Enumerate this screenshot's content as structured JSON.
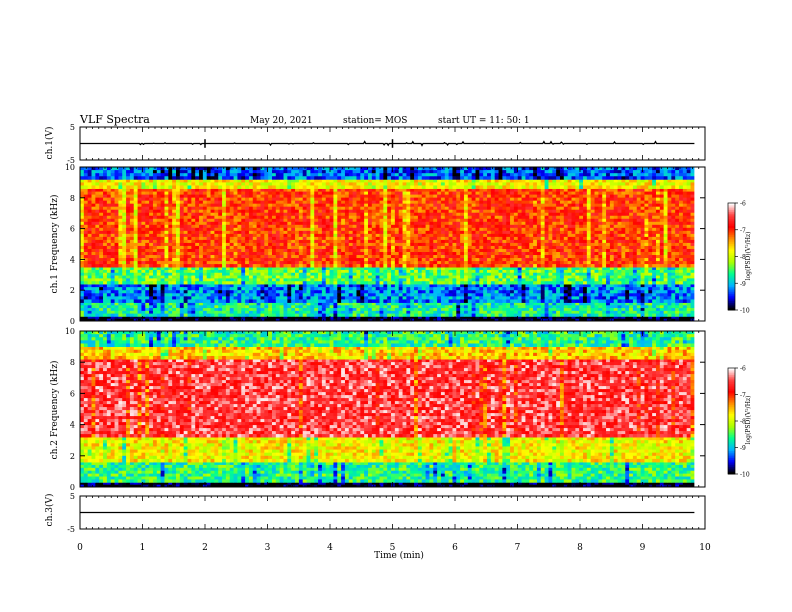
{
  "header": {
    "title": "VLF Spectra",
    "date": "May 20, 2021",
    "station": "station= MOS",
    "start": "start  UT =   11: 50: 1"
  },
  "colors": {
    "colormap": [
      "#000000",
      "#0000ff",
      "#00b4ff",
      "#00ff90",
      "#aaff00",
      "#ffff00",
      "#ff8c00",
      "#ff0000",
      "#ff4040",
      "#ffffff"
    ],
    "trace": "#000000"
  },
  "chart_data": [
    {
      "type": "line",
      "panel": "ch1-waveform",
      "ylabel": "ch.1(V)",
      "ylim": [
        -5,
        5
      ],
      "yticks": [
        "5",
        "-5"
      ],
      "xlim": [
        0,
        10
      ],
      "series": [
        {
          "values_note": "",
          "level": 0
        }
      ]
    },
    {
      "type": "heatmap",
      "panel": "ch1-spectrogram",
      "ylabel": "ch.1 Frequency (kHz)",
      "ylim": [
        0,
        10
      ],
      "yticks": [
        "0",
        "2",
        "4",
        "6",
        "8",
        "10"
      ],
      "xlim": [
        0,
        10
      ],
      "colorbar": {
        "label": "log(PSD)(V²/Hz)",
        "ticks": [
          "-6",
          "-7",
          "-8",
          "-9",
          "-10"
        ],
        "range": [
          -10,
          -6
        ]
      },
      "bands": [
        {
          "f0": 0.0,
          "f1": 0.3,
          "level": -10
        },
        {
          "f0": 0.3,
          "f1": 1.2,
          "level": -8.7
        },
        {
          "f0": 1.2,
          "f1": 2.4,
          "level": -9.2
        },
        {
          "f0": 2.4,
          "f1": 3.5,
          "level": -8.4
        },
        {
          "f0": 3.5,
          "f1": 8.6,
          "level": -7.0
        },
        {
          "f0": 8.6,
          "f1": 9.2,
          "level": -7.8
        },
        {
          "f0": 9.2,
          "f1": 10.0,
          "level": -9.3
        }
      ]
    },
    {
      "type": "heatmap",
      "panel": "ch2-spectrogram",
      "ylabel": "ch.2 Frequency (kHz)",
      "ylim": [
        0,
        10
      ],
      "yticks": [
        "0",
        "2",
        "4",
        "6",
        "8",
        "10"
      ],
      "xlim": [
        0,
        10
      ],
      "colorbar": {
        "label": "log(PSD)(V²/Hz)",
        "ticks": [
          "-6",
          "-7",
          "-8",
          "-9",
          "-10"
        ],
        "range": [
          -10,
          -6
        ]
      },
      "bands": [
        {
          "f0": 0.0,
          "f1": 0.3,
          "level": -10
        },
        {
          "f0": 0.3,
          "f1": 1.6,
          "level": -8.6
        },
        {
          "f0": 1.6,
          "f1": 3.2,
          "level": -7.8
        },
        {
          "f0": 3.2,
          "f1": 8.2,
          "level": -6.5
        },
        {
          "f0": 8.2,
          "f1": 9.0,
          "level": -7.6
        },
        {
          "f0": 9.0,
          "f1": 10.0,
          "level": -8.6
        }
      ]
    },
    {
      "type": "line",
      "panel": "ch3-waveform",
      "ylabel": "ch.3(V)",
      "ylim": [
        -5,
        5
      ],
      "yticks": [
        "5",
        "-5"
      ],
      "xlim": [
        0,
        10
      ],
      "series": [
        {
          "level": 0
        }
      ]
    }
  ],
  "xaxis": {
    "label": "Time  (min)",
    "ticks": [
      "0",
      "1",
      "2",
      "3",
      "4",
      "5",
      "6",
      "7",
      "8",
      "9",
      "10"
    ]
  }
}
